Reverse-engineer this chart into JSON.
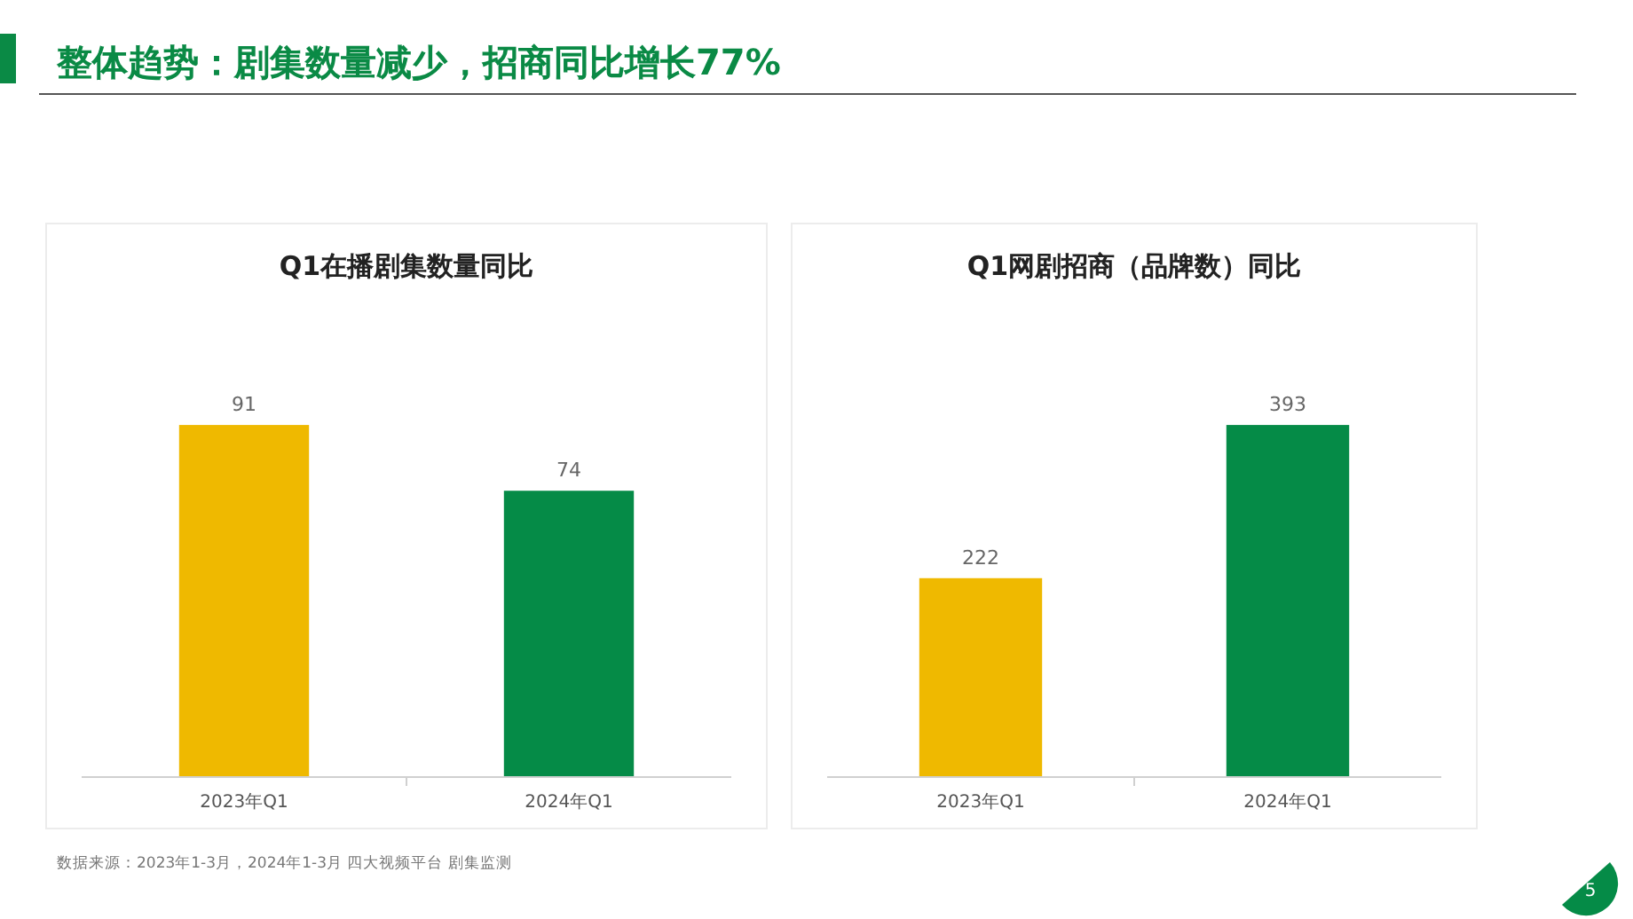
{
  "chart_data": [
    {
      "type": "other",
      "title": "整体趋势：剧集数量减少，招商同比增长77%",
      "annotations": [
        "数据来源：2023年1-3月，2024年1-3月 四大视频平台 剧集监测",
        "5"
      ]
    },
    {
      "type": "bar",
      "title": "Q1在播剧集数量同比",
      "categories": [
        "2023年Q1",
        "2024年Q1"
      ],
      "values": [
        91,
        74
      ],
      "colors": [
        "#efb900",
        "#058b47"
      ],
      "data_labels": true
    },
    {
      "type": "bar",
      "title": "Q1网剧招商（品牌数）同比",
      "categories": [
        "2023年Q1",
        "2024年Q1"
      ],
      "values": [
        222,
        393
      ],
      "colors": [
        "#efb900",
        "#058b47"
      ],
      "data_labels": true
    }
  ]
}
